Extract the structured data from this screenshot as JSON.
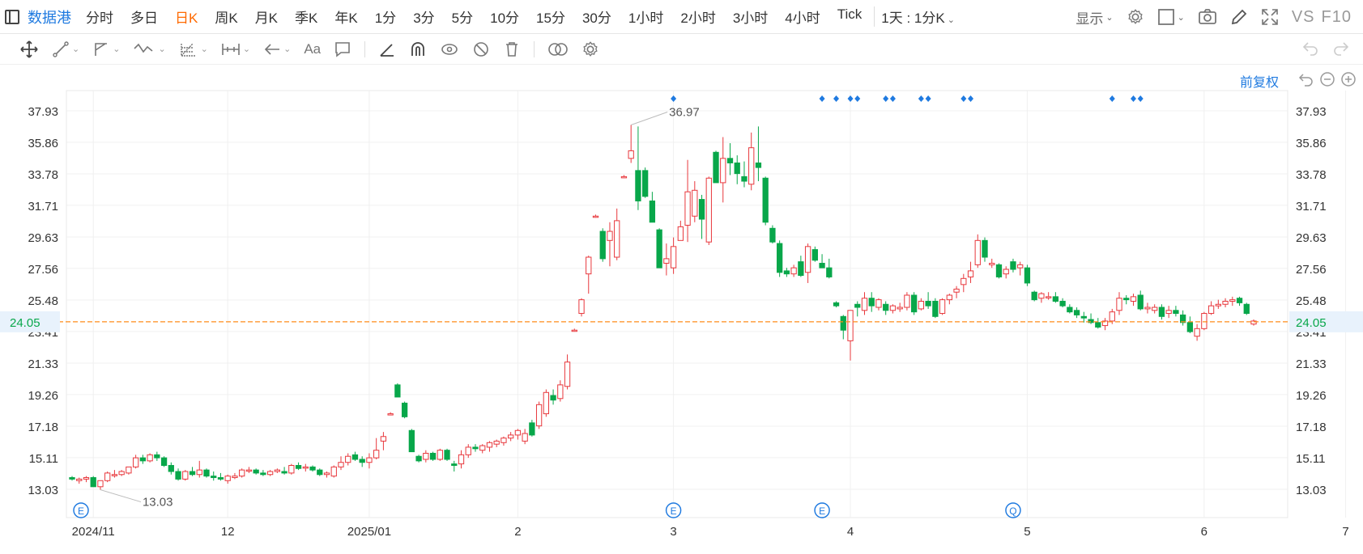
{
  "topbar": {
    "brand": "数据港",
    "periods": [
      "分时",
      "多日",
      "日K",
      "周K",
      "月K",
      "季K",
      "年K",
      "1分",
      "3分",
      "5分",
      "10分",
      "15分",
      "30分",
      "1小时",
      "2小时",
      "3小时",
      "4小时",
      "Tick"
    ],
    "active_period": "日K",
    "combo": "1天 : 1分K",
    "display_label": "显示",
    "vs_label": "VS",
    "f10_label": "F10"
  },
  "toolbar_icons": [
    "move-icon",
    "line-icon",
    "channel-icon",
    "wave-icon",
    "fib-icon",
    "measure-icon",
    "arrow-icon",
    "text-icon",
    "comment-icon",
    "angle-icon",
    "magnet-icon",
    "eye-lock-icon",
    "hide-icon",
    "trash-icon",
    "compare-icon",
    "settings-icon"
  ],
  "text_tool_label": "Aa",
  "adjust_label": "前复权",
  "colors": {
    "up": "#e8383d",
    "down": "#08a74a",
    "accent": "#1f7ae0",
    "last_price_line": "#ff8c1a",
    "event": "#1f7ae0"
  },
  "chart_data": {
    "type": "candlestick",
    "y_axis_ticks": [
      "37.93",
      "35.86",
      "33.78",
      "31.71",
      "29.63",
      "27.56",
      "25.48",
      "23.41",
      "21.33",
      "19.26",
      "17.18",
      "15.11",
      "13.03"
    ],
    "x_axis_labels": [
      "2024/11",
      "12",
      "2025/01",
      "2",
      "3",
      "4",
      "5",
      "6",
      "7"
    ],
    "last_price": "24.05",
    "annotations": {
      "high": "36.97",
      "low": "13.03"
    },
    "event_markers_bottom": [
      "E",
      "E",
      "E",
      "Q"
    ],
    "candles": [
      [
        13.8,
        13.9,
        13.6,
        13.7
      ],
      [
        13.6,
        13.8,
        13.4,
        13.7
      ],
      [
        13.7,
        13.9,
        13.5,
        13.8
      ],
      [
        13.8,
        13.9,
        13.3,
        13.2
      ],
      [
        13.2,
        13.5,
        13.0,
        13.6
      ],
      [
        13.6,
        14.2,
        13.5,
        14.1
      ],
      [
        14.0,
        14.3,
        13.8,
        14.0
      ],
      [
        14.0,
        14.3,
        13.9,
        14.2
      ],
      [
        14.1,
        14.5,
        14.0,
        14.5
      ],
      [
        14.5,
        15.3,
        14.4,
        15.1
      ],
      [
        15.1,
        15.3,
        14.7,
        14.9
      ],
      [
        14.9,
        15.4,
        14.8,
        15.3
      ],
      [
        15.3,
        15.5,
        14.9,
        15.1
      ],
      [
        15.1,
        15.2,
        14.5,
        14.6
      ],
      [
        14.6,
        14.8,
        14.0,
        14.2
      ],
      [
        14.2,
        14.4,
        13.6,
        13.7
      ],
      [
        13.7,
        14.3,
        13.6,
        14.2
      ],
      [
        14.2,
        14.5,
        13.9,
        14.0
      ],
      [
        14.0,
        14.9,
        13.8,
        14.3
      ],
      [
        14.3,
        14.4,
        13.8,
        13.9
      ],
      [
        13.9,
        14.2,
        13.6,
        13.8
      ],
      [
        13.8,
        14.1,
        13.6,
        13.7
      ],
      [
        13.6,
        14.0,
        13.4,
        13.9
      ],
      [
        13.8,
        14.1,
        13.7,
        13.9
      ],
      [
        13.9,
        14.4,
        13.8,
        14.3
      ],
      [
        14.3,
        14.5,
        14.1,
        14.3
      ],
      [
        14.3,
        14.4,
        14.0,
        14.1
      ],
      [
        14.1,
        14.3,
        13.9,
        14.0
      ],
      [
        14.0,
        14.3,
        13.9,
        14.2
      ],
      [
        14.2,
        14.4,
        14.1,
        14.3
      ],
      [
        14.2,
        14.5,
        14.0,
        14.1
      ],
      [
        14.1,
        14.7,
        14.0,
        14.6
      ],
      [
        14.6,
        14.8,
        14.3,
        14.4
      ],
      [
        14.5,
        14.7,
        14.2,
        14.5
      ],
      [
        14.5,
        14.6,
        14.2,
        14.3
      ],
      [
        14.3,
        14.4,
        13.9,
        14.0
      ],
      [
        14.0,
        14.2,
        13.8,
        14.1
      ],
      [
        13.9,
        14.6,
        13.8,
        14.5
      ],
      [
        14.5,
        15.2,
        14.3,
        14.8
      ],
      [
        14.8,
        15.4,
        14.6,
        15.2
      ],
      [
        15.3,
        15.5,
        14.9,
        15.0
      ],
      [
        15.0,
        15.2,
        14.5,
        14.8
      ],
      [
        14.8,
        15.4,
        14.4,
        15.1
      ],
      [
        15.1,
        16.4,
        15.0,
        15.6
      ],
      [
        16.2,
        16.8,
        15.6,
        16.5
      ],
      [
        18.0,
        18.1,
        17.9,
        18.0
      ],
      [
        19.9,
        20.0,
        19.1,
        19.1
      ],
      [
        18.7,
        18.8,
        17.7,
        17.8
      ],
      [
        16.9,
        17.0,
        15.5,
        15.5
      ],
      [
        15.2,
        15.3,
        14.8,
        14.9
      ],
      [
        15.0,
        15.6,
        14.8,
        15.4
      ],
      [
        15.4,
        15.5,
        14.9,
        15.0
      ],
      [
        15.0,
        15.7,
        14.9,
        15.6
      ],
      [
        15.6,
        15.7,
        14.9,
        15.0
      ],
      [
        14.7,
        14.9,
        14.2,
        14.6
      ],
      [
        14.7,
        15.6,
        14.4,
        15.3
      ],
      [
        15.3,
        16.0,
        15.1,
        15.8
      ],
      [
        15.8,
        16.0,
        15.5,
        15.7
      ],
      [
        15.6,
        16.0,
        15.4,
        15.9
      ],
      [
        15.8,
        16.2,
        15.5,
        16.1
      ],
      [
        16.0,
        16.3,
        15.8,
        16.2
      ],
      [
        16.1,
        16.5,
        15.9,
        16.4
      ],
      [
        16.4,
        16.8,
        16.2,
        16.6
      ],
      [
        16.6,
        17.0,
        16.3,
        16.9
      ],
      [
        16.2,
        17.0,
        16.0,
        16.7
      ],
      [
        17.4,
        17.6,
        16.5,
        16.6
      ],
      [
        17.2,
        18.8,
        17.0,
        18.6
      ],
      [
        18.0,
        19.6,
        17.8,
        19.4
      ],
      [
        19.2,
        19.6,
        18.6,
        18.9
      ],
      [
        19.0,
        20.2,
        18.8,
        19.9
      ],
      [
        19.8,
        21.9,
        19.6,
        21.4
      ],
      [
        23.5,
        23.6,
        23.4,
        23.5
      ],
      [
        24.6,
        25.6,
        24.4,
        25.5
      ],
      [
        27.2,
        28.4,
        25.9,
        28.3
      ],
      [
        31.0,
        31.1,
        30.9,
        31.0
      ],
      [
        30.0,
        30.2,
        28.0,
        28.2
      ],
      [
        29.4,
        30.6,
        27.7,
        30.0
      ],
      [
        28.3,
        31.5,
        28.1,
        30.7
      ],
      [
        33.6,
        33.7,
        33.5,
        33.6
      ],
      [
        34.8,
        37.0,
        34.5,
        35.3
      ],
      [
        34.0,
        36.9,
        31.4,
        32.0
      ],
      [
        34.0,
        34.2,
        32.2,
        32.3
      ],
      [
        32.0,
        32.6,
        30.6,
        30.6
      ],
      [
        30.1,
        30.2,
        27.6,
        27.6
      ],
      [
        27.9,
        29.2,
        27.1,
        28.2
      ],
      [
        27.6,
        29.6,
        27.2,
        29.0
      ],
      [
        29.4,
        30.7,
        29.4,
        30.3
      ],
      [
        30.4,
        34.7,
        29.3,
        32.6
      ],
      [
        31.0,
        33.3,
        30.6,
        32.7
      ],
      [
        32.1,
        32.4,
        29.5,
        30.8
      ],
      [
        29.3,
        33.6,
        29.1,
        33.5
      ],
      [
        35.2,
        35.3,
        33.2,
        33.2
      ],
      [
        33.2,
        36.2,
        31.9,
        34.8
      ],
      [
        34.8,
        35.8,
        33.7,
        34.5
      ],
      [
        34.5,
        35.0,
        33.1,
        33.8
      ],
      [
        33.6,
        34.6,
        32.9,
        33.3
      ],
      [
        33.1,
        36.5,
        32.7,
        35.5
      ],
      [
        34.5,
        36.9,
        33.3,
        34.2
      ],
      [
        33.5,
        33.6,
        30.4,
        30.6
      ],
      [
        30.2,
        30.4,
        29.2,
        29.3
      ],
      [
        29.2,
        29.4,
        27.0,
        27.3
      ],
      [
        27.4,
        27.6,
        27.0,
        27.2
      ],
      [
        27.2,
        27.8,
        27.0,
        27.6
      ],
      [
        28.0,
        28.4,
        27.0,
        27.1
      ],
      [
        27.3,
        29.2,
        26.6,
        29.0
      ],
      [
        28.8,
        29.0,
        28.0,
        28.1
      ],
      [
        27.9,
        28.5,
        27.6,
        27.6
      ],
      [
        27.6,
        28.2,
        26.9,
        27.0
      ],
      [
        25.3,
        25.4,
        25.0,
        25.1
      ],
      [
        24.4,
        24.5,
        22.9,
        23.5
      ],
      [
        22.8,
        24.8,
        21.5,
        24.8
      ],
      [
        25.2,
        25.4,
        24.4,
        25.0
      ],
      [
        24.8,
        26.0,
        24.5,
        25.6
      ],
      [
        25.6,
        26.0,
        24.7,
        25.1
      ],
      [
        25.0,
        25.6,
        24.8,
        25.5
      ],
      [
        25.2,
        25.4,
        24.5,
        24.8
      ],
      [
        24.8,
        25.2,
        24.6,
        25.1
      ],
      [
        24.9,
        25.3,
        24.7,
        25.0
      ],
      [
        25.0,
        26.0,
        24.8,
        25.8
      ],
      [
        25.8,
        26.0,
        24.5,
        24.7
      ],
      [
        24.9,
        25.6,
        24.8,
        25.4
      ],
      [
        25.4,
        26.0,
        24.9,
        25.1
      ],
      [
        25.4,
        25.6,
        24.3,
        24.4
      ],
      [
        24.6,
        25.6,
        24.5,
        25.5
      ],
      [
        25.5,
        25.9,
        25.2,
        25.8
      ],
      [
        26.0,
        26.4,
        25.6,
        26.2
      ],
      [
        26.5,
        27.2,
        26.0,
        26.9
      ],
      [
        27.0,
        28.0,
        26.6,
        27.4
      ],
      [
        27.8,
        29.8,
        27.6,
        29.4
      ],
      [
        29.4,
        29.6,
        28.0,
        28.3
      ],
      [
        27.8,
        28.2,
        27.6,
        27.9
      ],
      [
        27.8,
        27.9,
        26.9,
        27.0
      ],
      [
        27.2,
        27.7,
        26.9,
        27.5
      ],
      [
        28.0,
        28.2,
        27.3,
        27.5
      ],
      [
        27.6,
        28.0,
        27.1,
        27.8
      ],
      [
        27.6,
        27.8,
        26.4,
        26.6
      ],
      [
        26.0,
        26.1,
        25.4,
        25.5
      ],
      [
        25.6,
        26.0,
        25.3,
        25.9
      ],
      [
        25.7,
        26.0,
        25.5,
        25.7
      ],
      [
        25.7,
        26.0,
        25.3,
        25.4
      ],
      [
        25.4,
        25.6,
        25.0,
        25.1
      ],
      [
        25.0,
        25.2,
        24.6,
        24.7
      ],
      [
        24.8,
        25.0,
        24.3,
        24.5
      ],
      [
        24.4,
        24.7,
        24.0,
        24.3
      ],
      [
        24.2,
        24.6,
        23.9,
        24.0
      ],
      [
        24.0,
        24.3,
        23.6,
        23.7
      ],
      [
        23.8,
        24.3,
        23.5,
        24.1
      ],
      [
        24.1,
        24.9,
        23.9,
        24.7
      ],
      [
        24.8,
        26.0,
        24.5,
        25.6
      ],
      [
        25.6,
        25.8,
        25.2,
        25.5
      ],
      [
        25.4,
        25.9,
        25.1,
        25.7
      ],
      [
        25.8,
        26.1,
        24.8,
        24.9
      ],
      [
        24.9,
        25.3,
        24.6,
        25.0
      ],
      [
        24.8,
        25.2,
        24.6,
        25.0
      ],
      [
        25.0,
        25.2,
        24.2,
        24.4
      ],
      [
        24.6,
        25.1,
        24.3,
        24.8
      ],
      [
        24.8,
        25.1,
        24.4,
        24.6
      ],
      [
        24.5,
        24.8,
        23.8,
        24.0
      ],
      [
        24.0,
        24.4,
        23.3,
        23.4
      ],
      [
        23.1,
        23.9,
        22.8,
        23.6
      ],
      [
        23.6,
        24.7,
        23.5,
        24.6
      ],
      [
        24.6,
        25.4,
        24.5,
        25.1
      ],
      [
        25.1,
        25.5,
        24.9,
        25.2
      ],
      [
        25.2,
        25.6,
        25.0,
        25.4
      ],
      [
        25.4,
        25.7,
        25.1,
        25.5
      ],
      [
        25.6,
        25.7,
        25.1,
        25.3
      ],
      [
        25.2,
        25.3,
        24.5,
        24.6
      ],
      [
        23.9,
        24.2,
        23.8,
        24.1
      ]
    ]
  }
}
